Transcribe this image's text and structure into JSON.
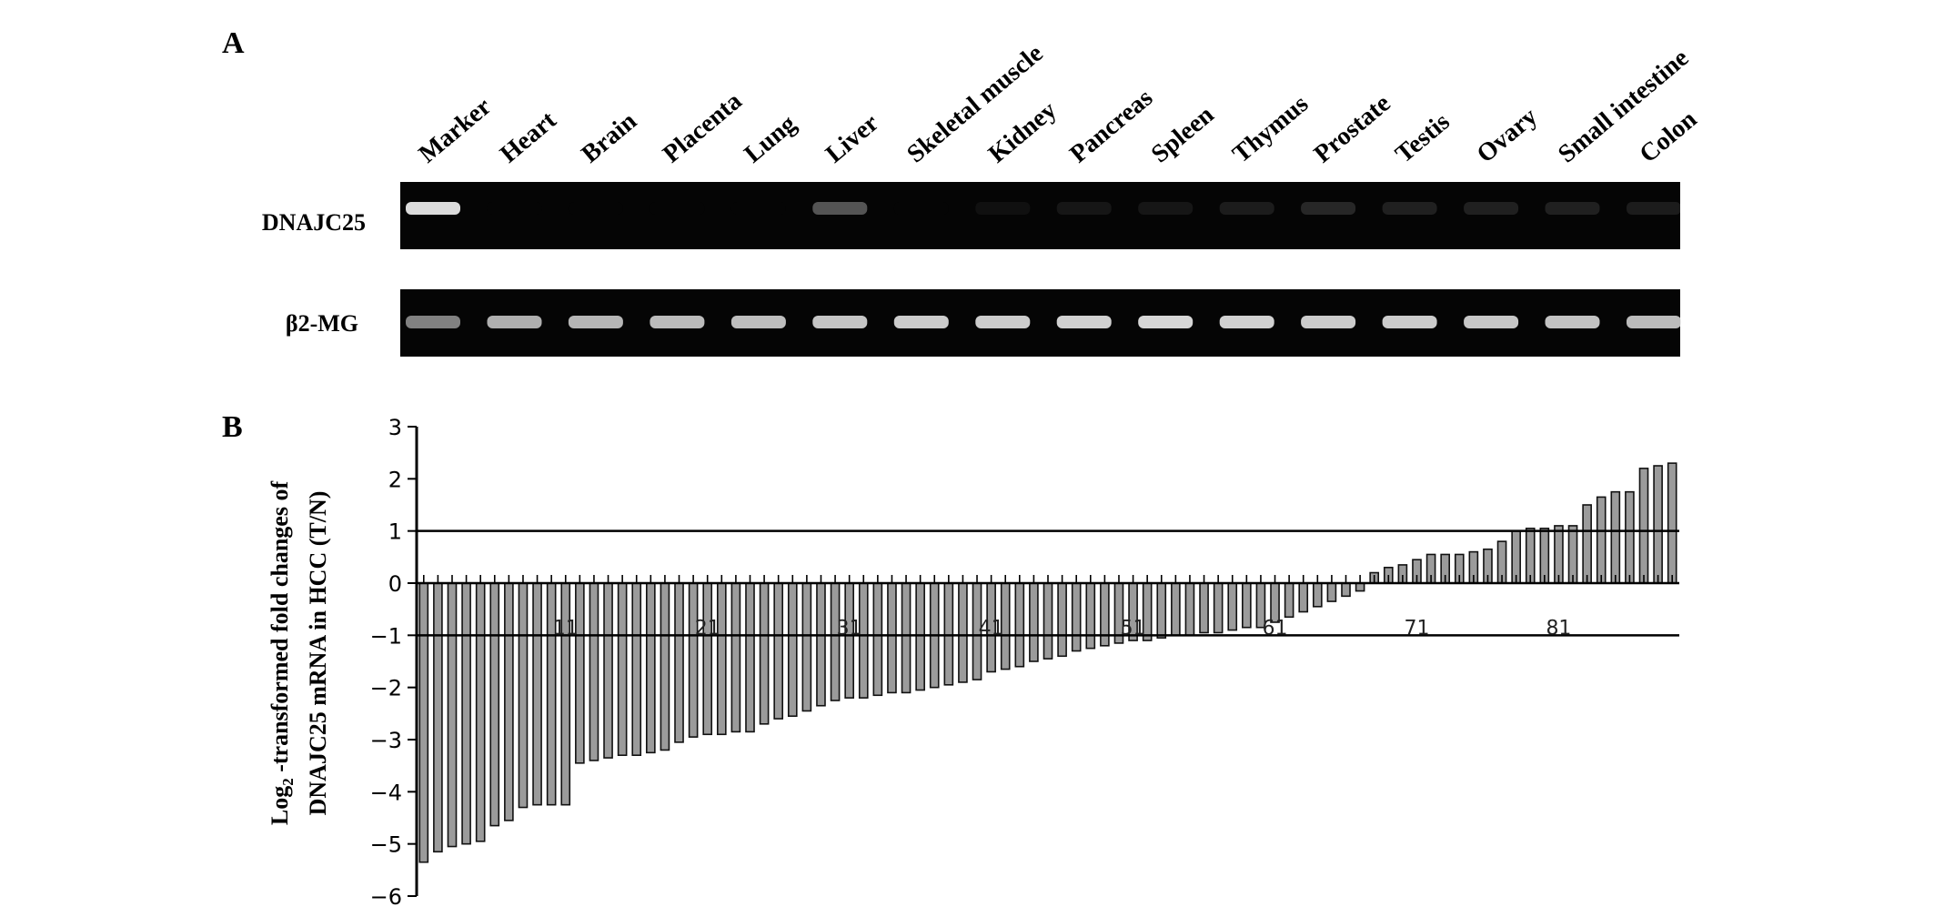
{
  "panels": {
    "a": {
      "letter": "A",
      "lanes": [
        "Marker",
        "Heart",
        "Brain",
        "Placenta",
        "Lung",
        "Liver",
        "Skeletal muscle",
        "Kidney",
        "Pancreas",
        "Spleen",
        "Thymus",
        "Prostate",
        "Testis",
        "Ovary",
        "Small intestine",
        "Colon"
      ],
      "rows": [
        {
          "label": "DNAJC25",
          "intensity": [
            0.95,
            0.0,
            0.0,
            0.0,
            0.0,
            0.35,
            0.0,
            0.05,
            0.08,
            0.08,
            0.1,
            0.15,
            0.12,
            0.12,
            0.12,
            0.1
          ]
        },
        {
          "label": "β2-MG",
          "intensity": [
            0.55,
            0.75,
            0.78,
            0.8,
            0.82,
            0.85,
            0.88,
            0.88,
            0.9,
            0.92,
            0.9,
            0.88,
            0.88,
            0.86,
            0.84,
            0.8
          ]
        }
      ]
    },
    "b": {
      "letter": "B",
      "ylabel_line1_pre": "Log",
      "ylabel_line1_sub": "2",
      "ylabel_line1_post": " -transformed fold changes of",
      "ylabel_line2": "DNAJC25 mRNA in HCC (T/N)"
    }
  },
  "chart_data": {
    "type": "bar",
    "ylabel": "Log2 -transformed fold changes of DNAJC25 mRNA in HCC (T/N)",
    "ylim": [
      -6,
      3
    ],
    "yticks": [
      3,
      2,
      1,
      0,
      -1,
      -2,
      -3,
      -4,
      -5,
      -6
    ],
    "reference_lines": [
      1,
      -1
    ],
    "x_tick_labels": [
      {
        "case": 11,
        "label": "11"
      },
      {
        "case": 21,
        "label": "21"
      },
      {
        "case": 31,
        "label": "31"
      },
      {
        "case": 41,
        "label": "41"
      },
      {
        "case": 51,
        "label": "51"
      },
      {
        "case": 61,
        "label": "61"
      },
      {
        "case": 71,
        "label": "71"
      },
      {
        "case": 81,
        "label": "81"
      }
    ],
    "values": [
      -5.35,
      -5.15,
      -5.05,
      -5.0,
      -4.95,
      -4.65,
      -4.55,
      -4.3,
      -4.25,
      -4.25,
      -4.25,
      -3.45,
      -3.4,
      -3.35,
      -3.3,
      -3.3,
      -3.25,
      -3.2,
      -3.05,
      -2.95,
      -2.9,
      -2.9,
      -2.85,
      -2.85,
      -2.7,
      -2.6,
      -2.55,
      -2.45,
      -2.35,
      -2.25,
      -2.2,
      -2.2,
      -2.15,
      -2.1,
      -2.1,
      -2.05,
      -2.0,
      -1.95,
      -1.9,
      -1.85,
      -1.7,
      -1.65,
      -1.6,
      -1.5,
      -1.45,
      -1.4,
      -1.3,
      -1.25,
      -1.2,
      -1.15,
      -1.1,
      -1.1,
      -1.05,
      -1.0,
      -1.0,
      -0.95,
      -0.95,
      -0.9,
      -0.85,
      -0.85,
      -0.75,
      -0.65,
      -0.55,
      -0.45,
      -0.35,
      -0.25,
      -0.15,
      0.2,
      0.3,
      0.35,
      0.45,
      0.55,
      0.55,
      0.55,
      0.6,
      0.65,
      0.8,
      1.0,
      1.05,
      1.05,
      1.1,
      1.1,
      1.5,
      1.65,
      1.75,
      1.75,
      2.2,
      2.25,
      2.3
    ]
  }
}
